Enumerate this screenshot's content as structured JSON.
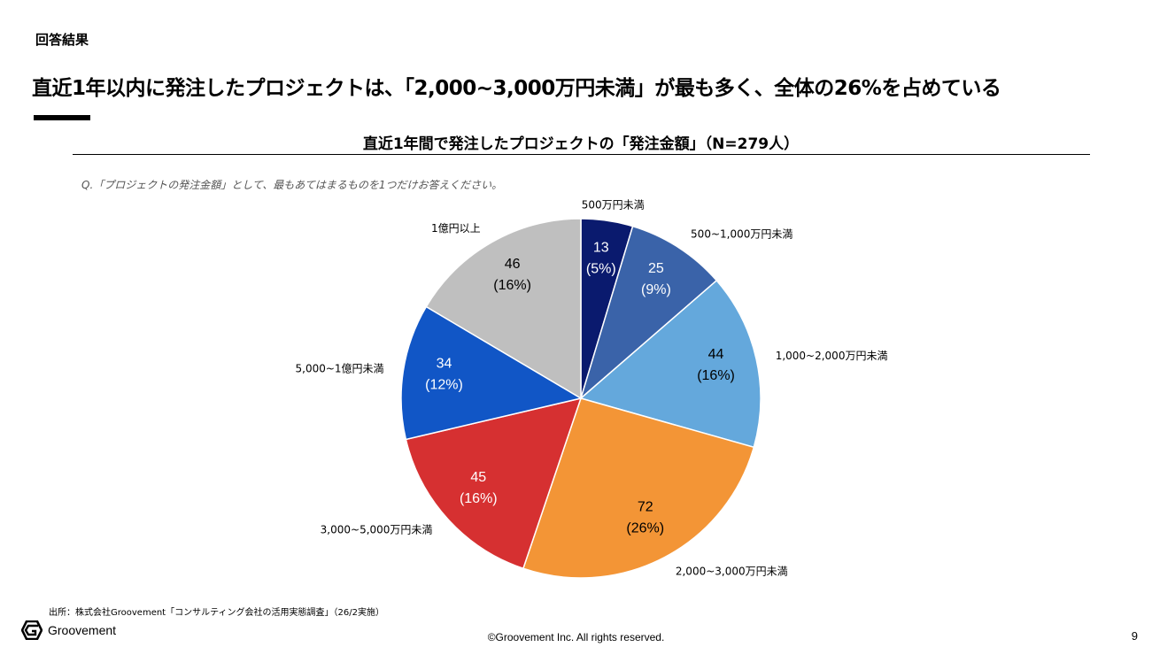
{
  "header": {
    "section_label": "回答結果",
    "headline": "直近1年以内に発注したプロジェクトは、「2,000~3,000万円未満」が最も多く、全体の26%を占めている"
  },
  "chart_data": {
    "type": "pie",
    "title": "直近1年間で発注したプロジェクトの「発注金額」（N=279人）",
    "subtitle": "Q.「プロジェクトの発注金額」として、最もあてはまるものを1つだけお答えください。",
    "slices": [
      {
        "label": "500万円未満",
        "value": 13,
        "percent_label": "(5%)",
        "color": "#0a1a6e",
        "value_text_color": "#ffffff"
      },
      {
        "label": "500~1,000万円未満",
        "value": 25,
        "percent_label": "(9%)",
        "color": "#3a63a9",
        "value_text_color": "#ffffff"
      },
      {
        "label": "1,000~2,000万円未満",
        "value": 44,
        "percent_label": "(16%)",
        "color": "#64a8dc",
        "value_text_color": "#000000"
      },
      {
        "label": "2,000~3,000万円未満",
        "value": 72,
        "percent_label": "(26%)",
        "color": "#f39536",
        "value_text_color": "#000000"
      },
      {
        "label": "3,000~5,000万円未満",
        "value": 45,
        "percent_label": "(16%)",
        "color": "#d63031",
        "value_text_color": "#ffffff"
      },
      {
        "label": "5,000~1億円未満",
        "value": 34,
        "percent_label": "(12%)",
        "color": "#1156c6",
        "value_text_color": "#ffffff"
      },
      {
        "label": "1億円以上",
        "value": 46,
        "percent_label": "(16%)",
        "color": "#bfbfbf",
        "value_text_color": "#000000"
      }
    ],
    "start": "top",
    "direction": "clockwise"
  },
  "footer": {
    "source": "出所：株式会社Groovement「コンサルティング会社の活用実態調査」（26/2実施）",
    "logo_text": "Groovement",
    "copyright": "©Groovement Inc. All rights reserved.",
    "page_number": "9"
  }
}
